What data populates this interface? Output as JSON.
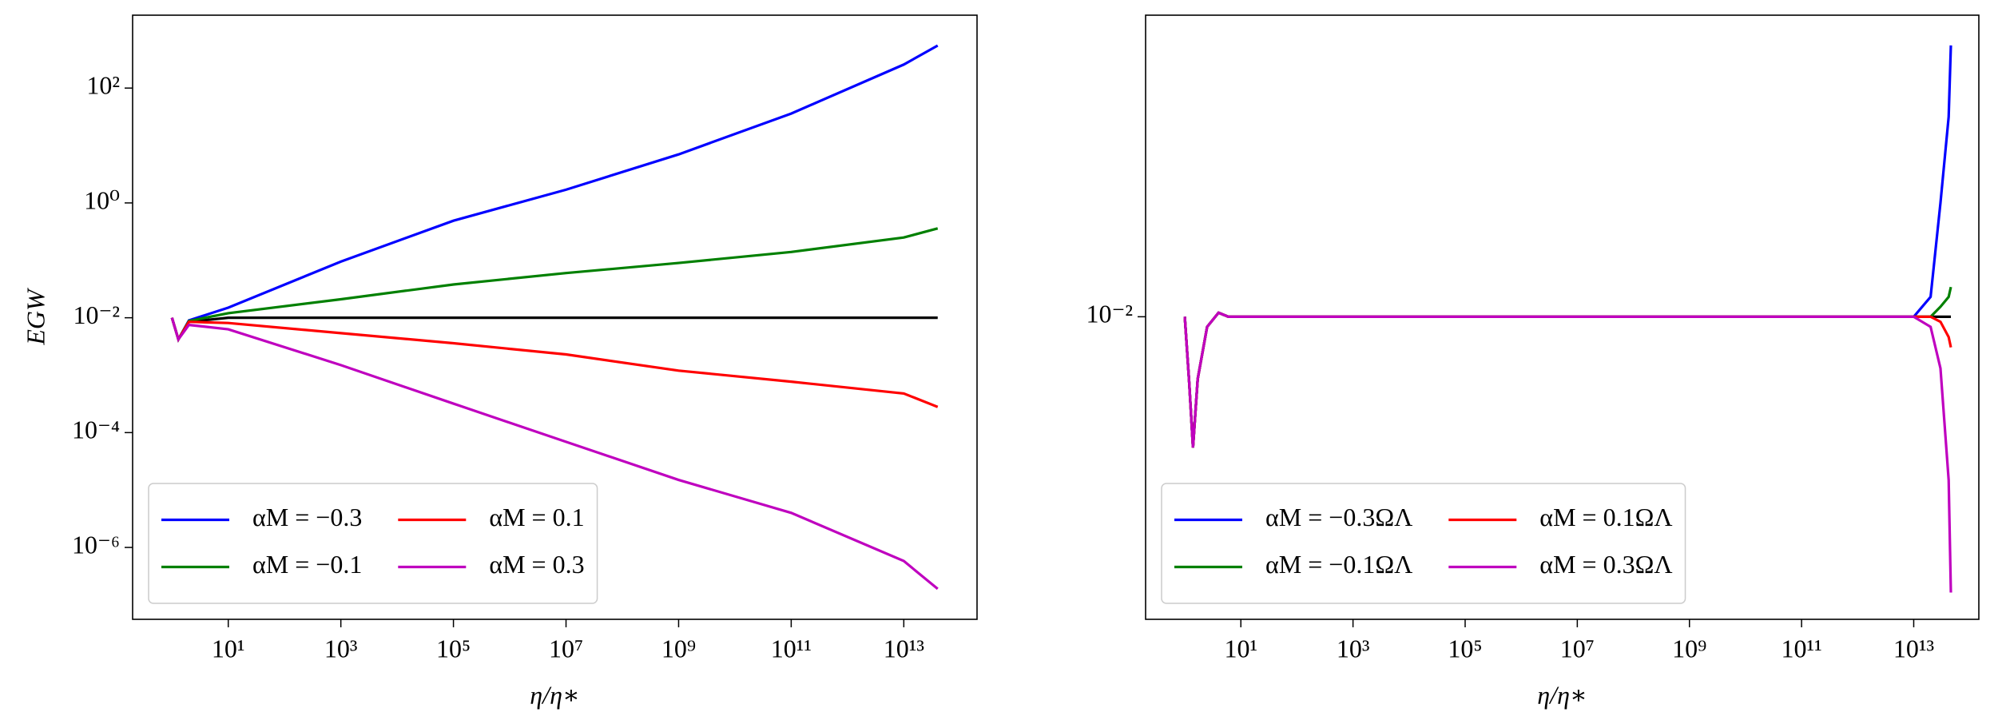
{
  "chart_data": [
    {
      "type": "line",
      "xscale": "log",
      "yscale": "log",
      "xlabel": "η/η∗",
      "ylabel": "EGW",
      "xlim": [
        0.2,
        200000000000000.0
      ],
      "ylim": [
        5.6e-08,
        1860
      ],
      "xticks": [
        {
          "value": 10,
          "label": "10¹"
        },
        {
          "value": 1000,
          "label": "10³"
        },
        {
          "value": 100000.0,
          "label": "10⁵"
        },
        {
          "value": 10000000.0,
          "label": "10⁷"
        },
        {
          "value": 1000000000.0,
          "label": "10⁹"
        },
        {
          "value": 100000000000.0,
          "label": "10¹¹"
        },
        {
          "value": 10000000000000.0,
          "label": "10¹³"
        }
      ],
      "yticks": [
        {
          "value": 1e-06,
          "label": "10⁻⁶"
        },
        {
          "value": 0.0001,
          "label": "10⁻⁴"
        },
        {
          "value": 0.01,
          "label": "10⁻²"
        },
        {
          "value": 1,
          "label": "10⁰"
        },
        {
          "value": 100,
          "label": "10²"
        }
      ],
      "legend": "lower left",
      "legend_columns": 2,
      "x": [
        1,
        1.3,
        2,
        10,
        1000,
        100000.0,
        10000000.0,
        1000000000.0,
        100000000000.0,
        10000000000000.0,
        40000000000000.0
      ],
      "series": [
        {
          "color": "#000000",
          "values": [
            0.01,
            0.0042,
            0.0085,
            0.01,
            0.01,
            0.01,
            0.01,
            0.01,
            0.01,
            0.01,
            0.01
          ]
        },
        {
          "name": "αM = −0.3",
          "color": "#0000ff",
          "values": [
            0.01,
            0.0042,
            0.009,
            0.015,
            0.095,
            0.49,
            1.7,
            7,
            36,
            257,
            550
          ]
        },
        {
          "name": "αM = −0.1",
          "color": "#008000",
          "values": [
            0.01,
            0.0042,
            0.0088,
            0.012,
            0.021,
            0.038,
            0.06,
            0.09,
            0.14,
            0.25,
            0.36
          ]
        },
        {
          "name": "αM = 0.1",
          "color": "#ff0000",
          "values": [
            0.01,
            0.0042,
            0.0085,
            0.0081,
            0.0054,
            0.0036,
            0.0023,
            0.0012,
            0.00077,
            0.00048,
            0.00028
          ]
        },
        {
          "name": "αM = 0.3",
          "color": "#bf00bf",
          "values": [
            0.01,
            0.0042,
            0.0075,
            0.0063,
            0.0015,
            0.00032,
            6.9e-05,
            1.5e-05,
            4e-06,
            5.8e-07,
            1.9e-07
          ]
        }
      ]
    },
    {
      "type": "line",
      "xscale": "log",
      "yscale": "log",
      "xlabel": "η/η∗",
      "xlim": [
        0.2,
        145000000000000.0
      ],
      "ylim": [
        0.0074,
        0.0135
      ],
      "xticks": [
        {
          "value": 10,
          "label": "10¹"
        },
        {
          "value": 1000,
          "label": "10³"
        },
        {
          "value": 100000.0,
          "label": "10⁵"
        },
        {
          "value": 10000000.0,
          "label": "10⁷"
        },
        {
          "value": 1000000000.0,
          "label": "10⁹"
        },
        {
          "value": 100000000000.0,
          "label": "10¹¹"
        },
        {
          "value": 10000000000000.0,
          "label": "10¹³"
        }
      ],
      "yticks": [
        {
          "value": 0.01,
          "label": "10⁻²"
        }
      ],
      "legend": "lower left",
      "legend_columns": 2,
      "x": [
        1,
        1.2,
        1.4,
        1.7,
        2.5,
        4,
        6,
        10,
        10000000000000.0,
        20000000000000.0,
        30000000000000.0,
        42000000000000.0,
        46000000000000.0
      ],
      "series": [
        {
          "color": "#000000",
          "values": [
            0.01,
            0.00936,
            0.00878,
            0.0094,
            0.0099,
            0.01004,
            0.01,
            0.01,
            0.01,
            0.01,
            0.01,
            0.01,
            0.01
          ]
        },
        {
          "name": "αM = −0.3ΩΛ",
          "color": "#0000ff",
          "values": [
            0.01,
            0.00936,
            0.00878,
            0.0094,
            0.0099,
            0.01004,
            0.01,
            0.01,
            0.01,
            0.0102,
            0.0112,
            0.0122,
            0.0131
          ]
        },
        {
          "name": "αM = −0.1ΩΛ",
          "color": "#008000",
          "values": [
            0.01,
            0.00936,
            0.00878,
            0.0094,
            0.0099,
            0.01004,
            0.01,
            0.01,
            0.01,
            0.01,
            0.0101,
            0.0102,
            0.0103
          ]
        },
        {
          "name": "αM = 0.1ΩΛ",
          "color": "#ff0000",
          "values": [
            0.01,
            0.00936,
            0.00878,
            0.0094,
            0.0099,
            0.01004,
            0.01,
            0.01,
            0.01,
            0.01,
            0.00995,
            0.0098,
            0.0097
          ]
        },
        {
          "name": "αM = 0.3ΩΛ",
          "color": "#bf00bf",
          "values": [
            0.01,
            0.00936,
            0.00878,
            0.0094,
            0.0099,
            0.01004,
            0.01,
            0.01,
            0.01,
            0.0099,
            0.0095,
            0.0085,
            0.0076
          ]
        }
      ]
    }
  ]
}
